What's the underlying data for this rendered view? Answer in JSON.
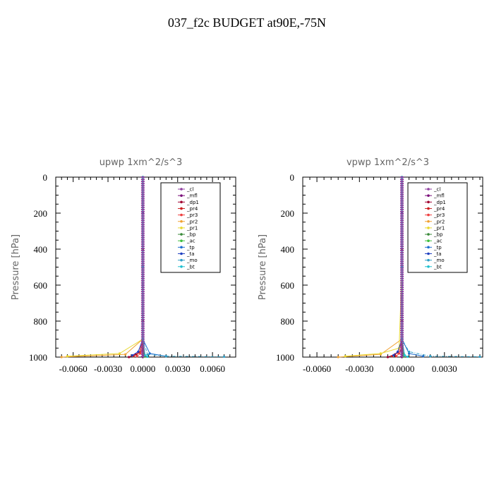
{
  "page": {
    "title": "037_f2c  BUDGET at90E,-75N"
  },
  "chart_data": [
    {
      "type": "line",
      "title": "upwp   1xm^2/s^3",
      "ylabel": "Pressure [hPa]",
      "xlim": [
        -0.0075,
        0.008
      ],
      "ylim": [
        1000,
        0
      ],
      "x_ticks": [
        -0.006,
        -0.003,
        0.0,
        0.003,
        0.006
      ],
      "x_tick_labels": [
        "-0.0060",
        "-0.0030",
        "0.0000",
        "0.0030",
        "0.0060"
      ],
      "y_ticks": [
        0,
        200,
        400,
        600,
        800,
        1000
      ],
      "y_tick_labels": [
        "0",
        "200",
        "400",
        "600",
        "800",
        "1000"
      ],
      "legend_position": "top-right",
      "series": [
        {
          "name": "_cl",
          "color": "#8f3fa0",
          "x": [
            0,
            0,
            0,
            0,
            0,
            0
          ],
          "y": [
            0,
            200,
            400,
            600,
            800,
            1000
          ]
        },
        {
          "name": "_mfl",
          "color": "#7a0f7a",
          "x": [
            0,
            0,
            0,
            0,
            0,
            0
          ],
          "y": [
            0,
            200,
            400,
            600,
            800,
            1000
          ]
        },
        {
          "name": "_dp1",
          "color": "#a00030",
          "x": [
            0,
            0,
            0,
            0,
            -0.0006,
            -0.0012
          ],
          "y": [
            0,
            400,
            800,
            960,
            985,
            1000
          ]
        },
        {
          "name": "_pr4",
          "color": "#cc1f1f",
          "x": [
            0,
            0,
            0,
            -0.0003,
            -0.0008
          ],
          "y": [
            0,
            400,
            900,
            975,
            995
          ]
        },
        {
          "name": "_pr3",
          "color": "#ee3f3f",
          "x": [
            0,
            0,
            0,
            -0.0002,
            -0.0005
          ],
          "y": [
            0,
            500,
            900,
            980,
            995
          ]
        },
        {
          "name": "_pr2",
          "color": "#f0a030",
          "x": [
            0,
            0,
            0,
            -0.0015,
            -0.007
          ],
          "y": [
            0,
            500,
            900,
            985,
            1000
          ]
        },
        {
          "name": "_pr1",
          "color": "#e8d830",
          "x": [
            0,
            0,
            0,
            -0.002,
            -0.0065
          ],
          "y": [
            0,
            500,
            900,
            980,
            995
          ]
        },
        {
          "name": "_bp",
          "color": "#3a8a3a",
          "x": [
            0,
            0,
            0,
            0.0001,
            0.0002
          ],
          "y": [
            0,
            500,
            900,
            980,
            995
          ]
        },
        {
          "name": "_ac",
          "color": "#40c040",
          "x": [
            0,
            0,
            0,
            0.0001,
            0.0001
          ],
          "y": [
            0,
            500,
            900,
            985,
            998
          ]
        },
        {
          "name": "_tp",
          "color": "#1f6fcf",
          "x": [
            0,
            0,
            0,
            0.0006,
            0.002
          ],
          "y": [
            0,
            500,
            900,
            980,
            995
          ]
        },
        {
          "name": "_ta",
          "color": "#2040c0",
          "x": [
            0,
            0,
            0,
            -0.0004,
            -0.0009
          ],
          "y": [
            0,
            500,
            900,
            970,
            990
          ]
        },
        {
          "name": "_mo",
          "color": "#30a0c8",
          "x": [
            0,
            0,
            0,
            0.0004,
            0.002,
            0.007
          ],
          "y": [
            0,
            500,
            900,
            985,
            995,
            998
          ]
        },
        {
          "name": "_bt",
          "color": "#20c0d0",
          "x": [
            0,
            0,
            0,
            0.0002,
            0.0004
          ],
          "y": [
            0,
            500,
            900,
            990,
            998
          ]
        }
      ]
    },
    {
      "type": "line",
      "title": "vpwp   1xm^2/s^3",
      "ylabel": "Pressure [hPa]",
      "xlim": [
        -0.007,
        0.0057
      ],
      "ylim": [
        1000,
        0
      ],
      "x_ticks": [
        -0.006,
        -0.003,
        0.0,
        0.003
      ],
      "x_tick_labels": [
        "-0.0060",
        "-0.0030",
        "0.0000",
        "0.0030"
      ],
      "y_ticks": [
        0,
        200,
        400,
        600,
        800,
        1000
      ],
      "y_tick_labels": [
        "0",
        "200",
        "400",
        "600",
        "800",
        "1000"
      ],
      "legend_position": "top-right",
      "series": [
        {
          "name": "_cl",
          "color": "#8f3fa0",
          "x": [
            0,
            0,
            0,
            0,
            0,
            0
          ],
          "y": [
            0,
            200,
            400,
            600,
            800,
            1000
          ]
        },
        {
          "name": "_mfl",
          "color": "#7a0f7a",
          "x": [
            0,
            0,
            0,
            0,
            0,
            0
          ],
          "y": [
            0,
            200,
            400,
            600,
            800,
            1000
          ]
        },
        {
          "name": "_dp1",
          "color": "#a00030",
          "x": [
            0,
            0,
            0,
            0,
            -0.0005,
            -0.001
          ],
          "y": [
            0,
            400,
            800,
            960,
            985,
            1000
          ]
        },
        {
          "name": "_pr4",
          "color": "#cc1f1f",
          "x": [
            0,
            0,
            0,
            -0.0003,
            -0.0007
          ],
          "y": [
            0,
            400,
            900,
            975,
            995
          ]
        },
        {
          "name": "_pr3",
          "color": "#ee3f3f",
          "x": [
            0,
            0,
            0,
            -0.0002,
            -0.0004
          ],
          "y": [
            0,
            500,
            900,
            980,
            995
          ]
        },
        {
          "name": "_pr2",
          "color": "#f0a030",
          "x": [
            0,
            0,
            0,
            -0.0015,
            -0.0045
          ],
          "y": [
            0,
            500,
            900,
            985,
            1000
          ]
        },
        {
          "name": "_pr1",
          "color": "#e8d830",
          "x": [
            0,
            0,
            -0.0002,
            -0.0015,
            -0.004
          ],
          "y": [
            0,
            500,
            950,
            980,
            995
          ]
        },
        {
          "name": "_bp",
          "color": "#3a8a3a",
          "x": [
            0,
            0,
            0,
            0.0001,
            0.0001
          ],
          "y": [
            0,
            500,
            900,
            980,
            995
          ]
        },
        {
          "name": "_ac",
          "color": "#40c040",
          "x": [
            0,
            0,
            0,
            0.0001,
            0.0001
          ],
          "y": [
            0,
            500,
            900,
            985,
            998
          ]
        },
        {
          "name": "_tp",
          "color": "#1f6fcf",
          "x": [
            0,
            0,
            0,
            0.0005,
            0.0015
          ],
          "y": [
            0,
            500,
            900,
            980,
            995
          ]
        },
        {
          "name": "_ta",
          "color": "#2040c0",
          "x": [
            0,
            0,
            0,
            -0.0003,
            -0.0006
          ],
          "y": [
            0,
            500,
            900,
            970,
            990
          ]
        },
        {
          "name": "_mo",
          "color": "#30a0c8",
          "x": [
            0,
            0,
            0,
            0.0005,
            0.002,
            0.0055
          ],
          "y": [
            0,
            500,
            900,
            970,
            995,
            998
          ]
        },
        {
          "name": "_bt",
          "color": "#20c0d0",
          "x": [
            0,
            0,
            0,
            0.0002,
            0.0004
          ],
          "y": [
            0,
            500,
            900,
            990,
            998
          ]
        }
      ]
    }
  ]
}
